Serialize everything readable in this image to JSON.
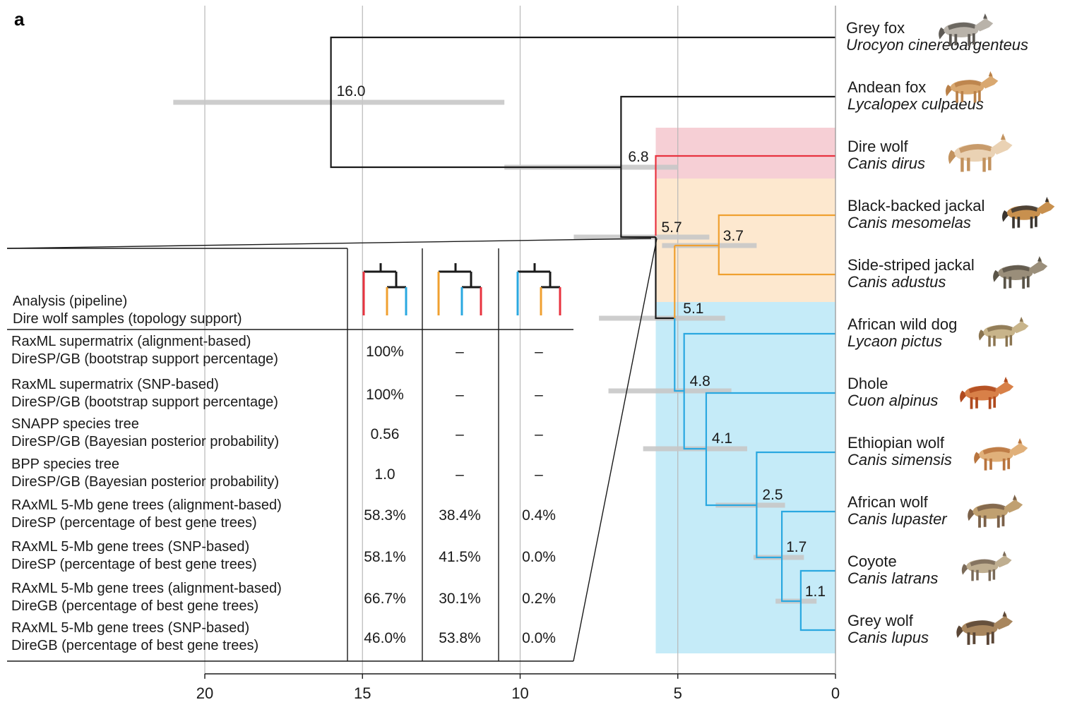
{
  "panel_label": "a",
  "axis": {
    "ticks": [
      20,
      15,
      10,
      5,
      0
    ],
    "tick_labels": [
      "20",
      "15",
      "10",
      "5",
      "0"
    ],
    "range": [
      0,
      20
    ],
    "direction": "reversed",
    "gridlines": true
  },
  "colors": {
    "black": "#1a1a1a",
    "dire_wolf": "#e8333f",
    "jackal": "#f0a030",
    "canis_clade": "#2aa8e0",
    "dire_wolf_band": "#f6cfd5",
    "jackal_band": "#fde8cf",
    "canis_band": "#c5ebf8",
    "hpd_bar": "#c8c8c8",
    "grid": "#b8b8b8"
  },
  "taxa": [
    {
      "common": "Grey fox",
      "latin": "Urocyon cinereoargenteus",
      "icon": "grey-fox-illustration"
    },
    {
      "common": "Andean fox",
      "latin": "Lycalopex culpaeus",
      "icon": "andean-fox-illustration"
    },
    {
      "common": "Dire wolf",
      "latin": "Canis dirus",
      "icon": "dire-wolf-illustration"
    },
    {
      "common": "Black-backed jackal",
      "latin": "Canis mesomelas",
      "icon": "black-backed-jackal-illustration"
    },
    {
      "common": "Side-striped jackal",
      "latin": "Canis adustus",
      "icon": "side-striped-jackal-illustration"
    },
    {
      "common": "African wild dog",
      "latin": "Lycaon pictus",
      "icon": "african-wild-dog-illustration"
    },
    {
      "common": "Dhole",
      "latin": "Cuon alpinus",
      "icon": "dhole-illustration"
    },
    {
      "common": "Ethiopian wolf",
      "latin": "Canis simensis",
      "icon": "ethiopian-wolf-illustration"
    },
    {
      "common": "African wolf",
      "latin": "Canis lupaster",
      "icon": "african-wolf-illustration"
    },
    {
      "common": "Coyote",
      "latin": "Canis latrans",
      "icon": "coyote-illustration"
    },
    {
      "common": "Grey wolf",
      "latin": "Canis lupus",
      "icon": "grey-wolf-illustration"
    }
  ],
  "nodes": [
    {
      "label": "16.0",
      "age": 16.0,
      "hpd": [
        21.0,
        10.5
      ]
    },
    {
      "label": "6.8",
      "age": 6.8,
      "hpd": [
        10.5,
        5.0
      ]
    },
    {
      "label": "5.7",
      "age": 5.7,
      "hpd": [
        8.3,
        4.0
      ]
    },
    {
      "label": "3.7",
      "age": 3.7,
      "hpd": [
        5.5,
        2.5
      ]
    },
    {
      "label": "5.1",
      "age": 5.1,
      "hpd": [
        7.5,
        3.5
      ]
    },
    {
      "label": "4.8",
      "age": 4.8,
      "hpd": [
        7.2,
        3.3
      ]
    },
    {
      "label": "4.1",
      "age": 4.1,
      "hpd": [
        6.1,
        2.8
      ]
    },
    {
      "label": "2.5",
      "age": 2.5,
      "hpd": [
        3.8,
        1.6
      ]
    },
    {
      "label": "1.7",
      "age": 1.7,
      "hpd": [
        2.6,
        1.0
      ]
    },
    {
      "label": "1.1",
      "age": 1.1,
      "hpd": [
        1.9,
        0.6
      ]
    }
  ],
  "table": {
    "header_line1": "Analysis (pipeline)",
    "header_line2": "Dire wolf samples (topology support)",
    "topology_icons": [
      "topology-1-icon",
      "topology-2-icon",
      "topology-3-icon"
    ],
    "rows": [
      {
        "line1": "RaxML supermatrix (alignment-based)",
        "line2": "DireSP/GB (bootstrap support percentage)",
        "values": [
          "100%",
          "–",
          "–"
        ]
      },
      {
        "line1": "RaxML supermatrix (SNP-based)",
        "line2": "DireSP/GB (bootstrap support percentage)",
        "values": [
          "100%",
          "–",
          "–"
        ]
      },
      {
        "line1": "SNAPP species tree",
        "line2": "DireSP/GB (Bayesian posterior probability)",
        "values": [
          "0.56",
          "–",
          "–"
        ]
      },
      {
        "line1": "BPP species tree",
        "line2": "DireSP/GB (Bayesian posterior probability)",
        "values": [
          "1.0",
          "–",
          "–"
        ]
      },
      {
        "line1": "RAxML 5-Mb gene trees (alignment-based)",
        "line2": "DireSP (percentage of best gene trees)",
        "values": [
          "58.3%",
          "38.4%",
          "0.4%"
        ]
      },
      {
        "line1": "RAxML 5-Mb gene trees (SNP-based)",
        "line2": "DireSP (percentage of best gene trees)",
        "values": [
          "58.1%",
          "41.5%",
          "0.0%"
        ]
      },
      {
        "line1": "RAxML 5-Mb gene trees (alignment-based)",
        "line2": "DireGB (percentage of best gene trees)",
        "values": [
          "66.7%",
          "30.1%",
          "0.2%"
        ]
      },
      {
        "line1": "RAxML 5-Mb gene trees (SNP-based)",
        "line2": "DireGB (percentage of best gene trees)",
        "values": [
          "46.0%",
          "53.8%",
          "0.0%"
        ]
      }
    ]
  }
}
